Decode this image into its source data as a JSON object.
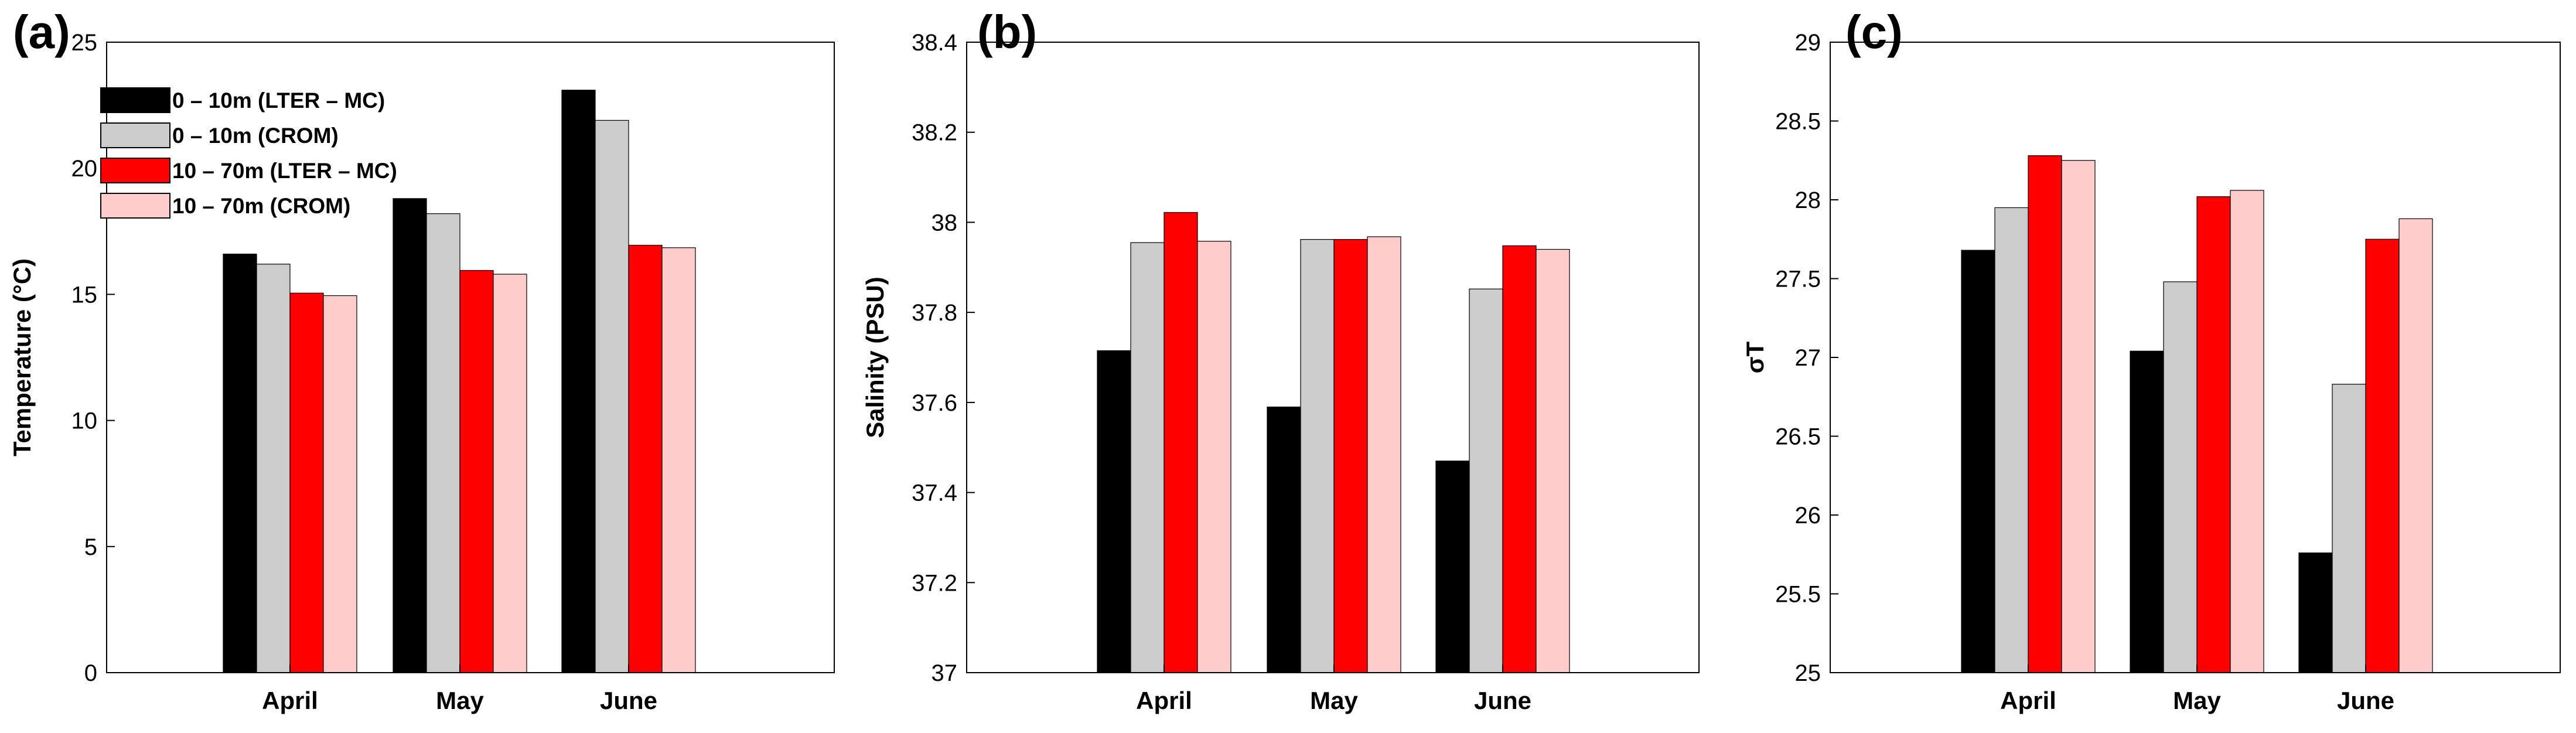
{
  "chart_data": [
    {
      "type": "bar",
      "panel_label": "(a)",
      "categories": [
        "April",
        "May",
        "June"
      ],
      "ylabel": "Temperature (°C)",
      "ylim": [
        0,
        25
      ],
      "yticks": [
        0,
        5,
        10,
        15,
        20,
        25
      ],
      "ytick_labels": [
        "0",
        "5",
        "10",
        "15",
        "20",
        "25"
      ],
      "legend": "top-left",
      "series": [
        {
          "name": "0 – 10m (LTER – MC)",
          "color": "#000000",
          "values": [
            16.6,
            18.8,
            23.1
          ]
        },
        {
          "name": "0 – 10m (CROM)",
          "color": "#cccccc",
          "values": [
            16.2,
            18.2,
            21.9
          ]
        },
        {
          "name": "10 – 70m (LTER – MC)",
          "color": "#ff0000",
          "values": [
            15.05,
            15.95,
            16.95
          ]
        },
        {
          "name": "10 – 70m (CROM)",
          "color": "#ffcccc",
          "values": [
            14.95,
            15.8,
            16.85
          ]
        }
      ]
    },
    {
      "type": "bar",
      "panel_label": "(b)",
      "categories": [
        "April",
        "May",
        "June"
      ],
      "ylabel": "Salinity (PSU)",
      "ylim": [
        37,
        38.4
      ],
      "yticks": [
        37,
        37.2,
        37.4,
        37.6,
        37.8,
        38,
        38.2,
        38.4
      ],
      "ytick_labels": [
        "37",
        "37.2",
        "37.4",
        "37.6",
        "37.8",
        "38",
        "38.2",
        "38.4"
      ],
      "series": [
        {
          "color": "#000000",
          "values": [
            37.715,
            37.59,
            37.47
          ]
        },
        {
          "color": "#cccccc",
          "values": [
            37.955,
            37.962,
            37.852
          ]
        },
        {
          "color": "#ff0000",
          "values": [
            38.022,
            37.962,
            37.948
          ]
        },
        {
          "color": "#ffcccc",
          "values": [
            37.958,
            37.968,
            37.94
          ]
        }
      ]
    },
    {
      "type": "bar",
      "panel_label": "(c)",
      "categories": [
        "April",
        "May",
        "June"
      ],
      "ylabel": "σT",
      "ylim": [
        25,
        29
      ],
      "yticks": [
        25,
        25.5,
        26,
        26.5,
        27,
        27.5,
        28,
        28.5,
        29
      ],
      "ytick_labels": [
        "25",
        "25.5",
        "26",
        "26.5",
        "27",
        "27.5",
        "28",
        "28.5",
        "29"
      ],
      "series": [
        {
          "color": "#000000",
          "values": [
            27.68,
            27.04,
            25.76
          ]
        },
        {
          "color": "#cccccc",
          "values": [
            27.95,
            27.48,
            26.83
          ]
        },
        {
          "color": "#ff0000",
          "values": [
            28.28,
            28.02,
            27.75
          ]
        },
        {
          "color": "#ffcccc",
          "values": [
            28.25,
            28.06,
            27.88
          ]
        }
      ]
    }
  ]
}
